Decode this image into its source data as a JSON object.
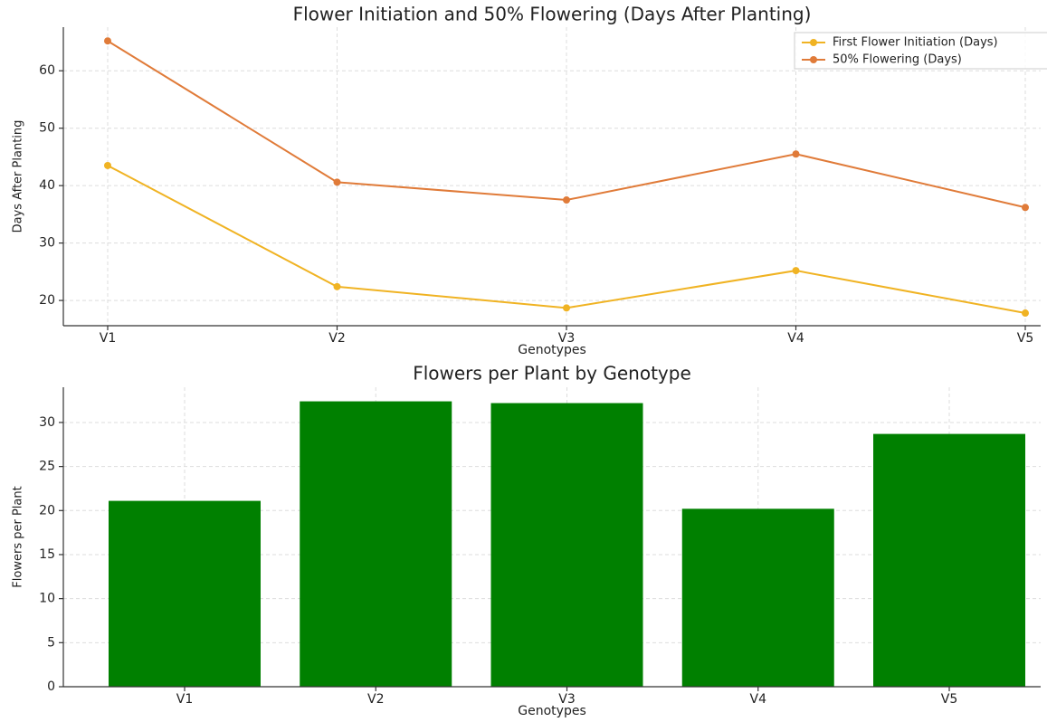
{
  "chart_data": [
    {
      "type": "line",
      "title": "Flower Initiation and 50% Flowering (Days After Planting)",
      "x_label": "Genotypes",
      "y_label": "Days After Planting",
      "categories": [
        "V1",
        "V2",
        "V3",
        "V4",
        "V5"
      ],
      "series": [
        {
          "name": "First Flower Initiation (Days)",
          "color": "#f0b323",
          "values": [
            43.5,
            22.4,
            18.7,
            25.2,
            17.8
          ]
        },
        {
          "name": "50% Flowering (Days)",
          "color": "#e07b39",
          "values": [
            65.2,
            40.6,
            37.5,
            45.5,
            36.2
          ]
        }
      ],
      "ylim": [
        15.6,
        67.6
      ],
      "yticks": [
        20,
        30,
        40,
        50,
        60
      ],
      "grid": true,
      "legend": "upper right"
    },
    {
      "type": "bar",
      "title": "Flowers per Plant by Genotype",
      "x_label": "Genotypes",
      "y_label": "Flowers per Plant",
      "categories": [
        "V1",
        "V2",
        "V3",
        "V4",
        "V5"
      ],
      "values": [
        21.1,
        32.4,
        32.2,
        20.2,
        28.7
      ],
      "color": "#008000",
      "ylim": [
        0,
        34
      ],
      "yticks": [
        0,
        5,
        10,
        15,
        20,
        25,
        30
      ],
      "grid": true
    }
  ]
}
